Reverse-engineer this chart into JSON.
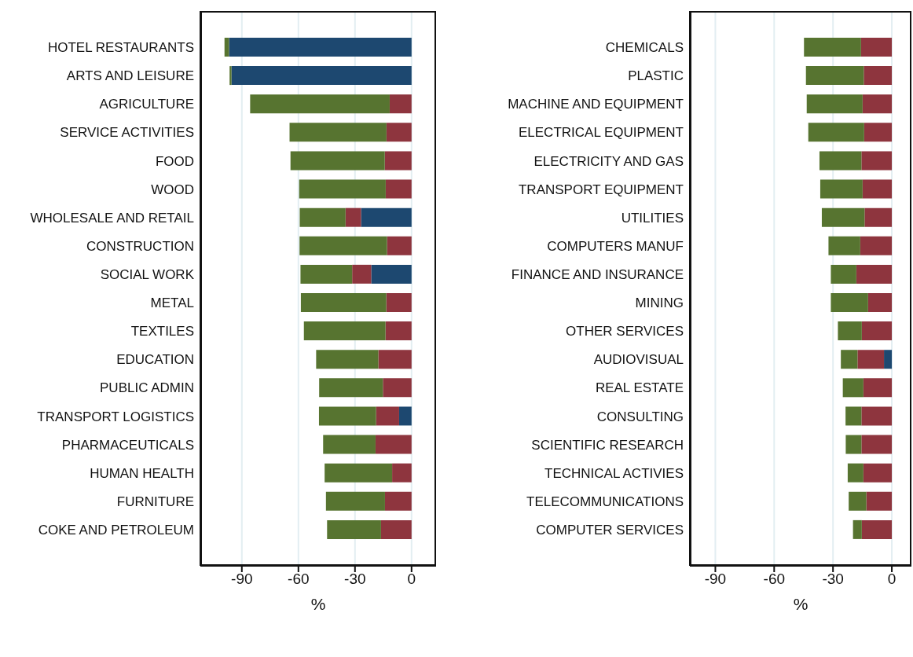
{
  "chart_data": [
    {
      "type": "bar",
      "orientation": "horizontal",
      "stacked": true,
      "xlabel": "%",
      "grid": "x",
      "categories": [
        "HOTEL RESTAURANTS",
        "ARTS AND LEISURE",
        "AGRICULTURE",
        "SERVICE ACTIVITIES",
        "FOOD",
        "WOOD",
        "WHOLESALE AND RETAIL",
        "CONSTRUCTION",
        "SOCIAL WORK",
        "METAL",
        "TEXTILES",
        "EDUCATION",
        "PUBLIC ADMIN",
        "TRANSPORT LOGISTICS",
        "PHARMACEUTICALS",
        "HUMAN HEALTH",
        "FURNITURE",
        "COKE AND PETROLEUM"
      ],
      "series": [
        {
          "color": "#1d4870",
          "values": [
            -96.8,
            -95.5,
            0,
            0,
            0,
            0,
            -26.8,
            0,
            -21.4,
            0,
            0,
            0,
            0,
            -6.6,
            0,
            0,
            0,
            0
          ]
        },
        {
          "color": "#8e353e",
          "values": [
            0,
            0,
            -11.6,
            -13.3,
            -14.2,
            -13.7,
            -8.2,
            -13.0,
            -10.1,
            -13.4,
            -13.8,
            -17.6,
            -15.2,
            -12.2,
            -19.1,
            -10.3,
            -14.1,
            -16.2
          ]
        },
        {
          "color": "#577430",
          "values": [
            -2.4,
            -1.0,
            -74.0,
            -51.4,
            -50.0,
            -45.9,
            -24.3,
            -46.4,
            -27.4,
            -45.3,
            -43.3,
            -33.0,
            -33.8,
            -30.3,
            -27.8,
            -35.8,
            -31.3,
            -28.6
          ]
        }
      ],
      "xlim": [
        -112,
        13
      ],
      "xticks": [
        -90,
        -60,
        -30,
        0
      ]
    },
    {
      "type": "bar",
      "orientation": "horizontal",
      "stacked": true,
      "xlabel": "%",
      "grid": "x",
      "categories": [
        "CHEMICALS",
        "PLASTIC",
        "MACHINE AND EQUIPMENT",
        "ELECTRICAL EQUIPMENT",
        "ELECTRICITY AND GAS",
        "TRANSPORT EQUIPMENT",
        "UTILITIES",
        "COMPUTERS MANUF",
        "FINANCE AND INSURANCE",
        "MINING",
        "OTHER SERVICES",
        "AUDIOVISUAL",
        "REAL ESTATE",
        "CONSULTING",
        "SCIENTIFIC RESEARCH",
        "TECHNICAL ACTIVIES",
        "TELECOMMUNICATIONS",
        "COMPUTER SERVICES"
      ],
      "series": [
        {
          "color": "#1d4870",
          "values": [
            0,
            0,
            0,
            0,
            0,
            0,
            0,
            0,
            0,
            0,
            0,
            -4.0,
            0,
            0,
            0,
            0,
            0,
            0
          ]
        },
        {
          "color": "#8e353e",
          "values": [
            -15.7,
            -14.3,
            -14.9,
            -14.1,
            -15.5,
            -14.9,
            -13.9,
            -16.1,
            -18.1,
            -12.1,
            -15.3,
            -13.5,
            -14.5,
            -15.5,
            -15.5,
            -14.5,
            -13.0,
            -15.3
          ]
        },
        {
          "color": "#577430",
          "values": [
            -29.1,
            -29.5,
            -28.5,
            -28.5,
            -21.4,
            -21.6,
            -21.8,
            -16.2,
            -13.0,
            -19.0,
            -12.2,
            -8.5,
            -10.5,
            -8.1,
            -8.0,
            -8.0,
            -9.0,
            -4.5
          ]
        }
      ],
      "xlim": [
        -103,
        10
      ],
      "xticks": [
        -90,
        -60,
        -30,
        0
      ]
    }
  ]
}
